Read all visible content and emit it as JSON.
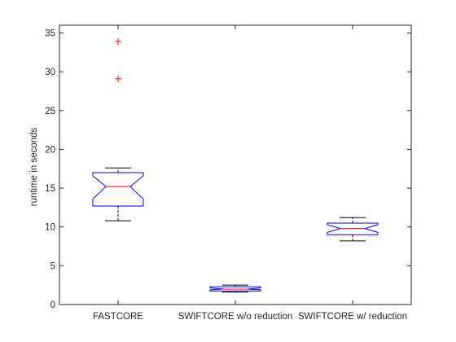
{
  "chart_data": {
    "type": "box",
    "ylabel": "runtime in seconds",
    "xlabel": "",
    "title": "",
    "ylim": [
      0,
      36
    ],
    "yticks": [
      0,
      5,
      10,
      15,
      20,
      25,
      30,
      35
    ],
    "grid": false,
    "categories": [
      "FASTCORE",
      "SWIFTCORE w/o reduction",
      "SWIFTCORE w/ reduction"
    ],
    "boxes": [
      {
        "category": "FASTCORE",
        "whisker_low": 10.8,
        "q1": 12.7,
        "median": 15.2,
        "q3": 17.0,
        "whisker_high": 17.6,
        "notch_low": 13.6,
        "notch_high": 16.6,
        "outliers": [
          29.1,
          33.9
        ]
      },
      {
        "category": "SWIFTCORE w/o reduction",
        "whisker_low": 1.6,
        "q1": 1.75,
        "median": 2.0,
        "q3": 2.3,
        "whisker_high": 2.5,
        "notch_low": 1.9,
        "notch_high": 2.15,
        "outliers": []
      },
      {
        "category": "SWIFTCORE w/ reduction",
        "whisker_low": 8.2,
        "q1": 9.0,
        "median": 9.8,
        "q3": 10.5,
        "whisker_high": 11.2,
        "notch_low": 9.3,
        "notch_high": 10.3,
        "outliers": []
      }
    ],
    "colors": {
      "box": "#0000ff",
      "median": "#ff0000",
      "whisker": "#000000",
      "outlier": "#ff0000",
      "axis": "#262626"
    }
  }
}
